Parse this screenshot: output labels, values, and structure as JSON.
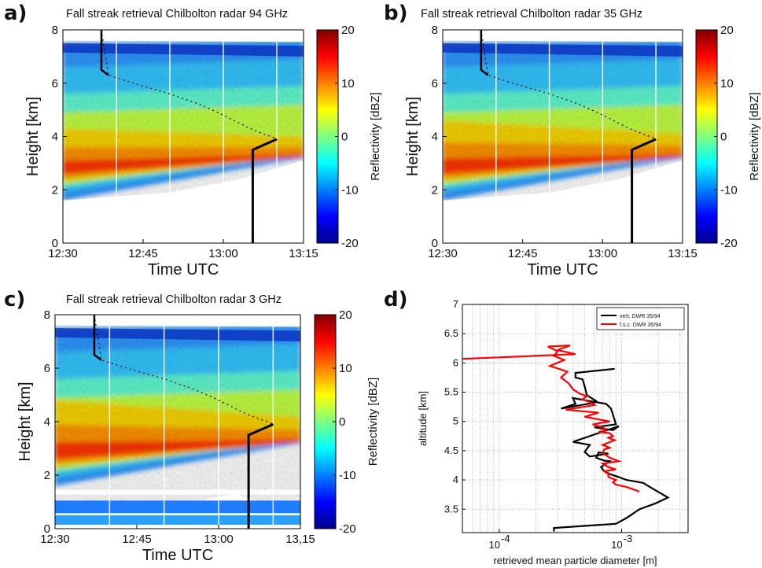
{
  "panels": [
    {
      "id": "a",
      "label": "a)",
      "title": "Fall streak retrieval Chilbolton radar 94 GHz"
    },
    {
      "id": "b",
      "label": "b)",
      "title": "Fall streak retrieval Chilbolton radar 35 GHz"
    },
    {
      "id": "c",
      "label": "c)",
      "title": "Fall streak retrieval Chilbolton radar 3 GHz"
    },
    {
      "id": "d",
      "label": "d)",
      "title": ""
    }
  ],
  "chart_data": [
    {
      "type": "heatmap",
      "title": "Fall streak retrieval Chilbolton radar 94 GHz",
      "xlabel": "Time UTC",
      "ylabel": "Height [km]",
      "x_ticks": [
        "12:30",
        "12:45",
        "13:00",
        "13:15"
      ],
      "y_ticks": [
        "0",
        "2",
        "4",
        "6",
        "8"
      ],
      "ylim": [
        0,
        8
      ],
      "colorbar": {
        "label": "Reflectivity [dBZ]",
        "ticks": [
          "20",
          "10",
          "0",
          "-10",
          "-20"
        ],
        "range": [
          -20,
          20
        ]
      },
      "colors": {
        "fall_streak": "#000000",
        "gridlines": "#ffffff"
      }
    },
    {
      "type": "heatmap",
      "title": "Fall streak retrieval Chilbolton radar 35 GHz",
      "xlabel": "Time UTC",
      "ylabel": "Height [km]",
      "x_ticks": [
        "12:30",
        "12:45",
        "13:00",
        "13:15"
      ],
      "y_ticks": [
        "0",
        "2",
        "4",
        "6",
        "8"
      ],
      "ylim": [
        0,
        8
      ],
      "colorbar": {
        "label": "Reflectivity [dBZ]",
        "ticks": [
          "20",
          "10",
          "0",
          "-10",
          "-20"
        ],
        "range": [
          -20,
          20
        ]
      }
    },
    {
      "type": "heatmap",
      "title": "Fall streak retrieval Chilbolton radar 3 GHz",
      "xlabel": "Time UTC",
      "ylabel": "Height [km]",
      "x_ticks": [
        "12:30",
        "12:45",
        "13:00",
        "13,15"
      ],
      "y_ticks": [
        "0",
        "2",
        "4",
        "6",
        "8"
      ],
      "ylim": [
        0,
        8
      ],
      "colorbar": {
        "label": "Reflectivity [dBZ]",
        "ticks": [
          "20",
          "10",
          "0",
          "-10",
          "-20"
        ],
        "range": [
          -20,
          20
        ]
      }
    },
    {
      "type": "line",
      "xlabel": "retrieved mean particle diameter [m]",
      "ylabel": "altitude [km]",
      "x_scale": "log",
      "xlim": [
        5e-05,
        0.0035
      ],
      "ylim": [
        3.1,
        7
      ],
      "x_ticks": [
        {
          "value": 0.0001,
          "base": "10",
          "exp": "-4"
        },
        {
          "value": 0.001,
          "base": "10",
          "exp": "-3"
        }
      ],
      "y_ticks": [
        "3.5",
        "4",
        "4.5",
        "5",
        "5.5",
        "6",
        "6.5",
        "7"
      ],
      "grid": true,
      "legend_position": "top-right",
      "series": [
        {
          "name": "vert. DWR 35/94",
          "color": "#000000",
          "x": [
            0.00088,
            0.00042,
            0.00042,
            0.00048,
            0.0005,
            0.00052,
            0.00062,
            0.0006,
            0.00032,
            0.00042,
            0.0004,
            0.00075,
            0.00082,
            0.00085,
            0.0009,
            0.0006,
            0.00085,
            0.00095,
            0.0004,
            0.00055,
            0.0005,
            0.00055,
            0.00078,
            0.00065,
            0.00062,
            0.00072,
            0.0008,
            0.00068,
            0.00072,
            0.0008,
            0.00095,
            0.0011,
            0.0015,
            0.0018,
            0.0024,
            0.0019,
            0.0014,
            0.0011,
            0.0009,
            0.00028,
            0.00028
          ],
          "y": [
            5.9,
            5.83,
            5.75,
            5.72,
            5.6,
            5.45,
            5.35,
            5.32,
            5.22,
            5.3,
            5.4,
            5.3,
            5.22,
            5.12,
            4.95,
            4.9,
            4.85,
            4.92,
            4.65,
            4.6,
            4.48,
            4.4,
            4.45,
            4.47,
            4.38,
            4.33,
            4.32,
            4.22,
            4.15,
            4.1,
            4.05,
            4.0,
            3.95,
            3.85,
            3.7,
            3.6,
            3.5,
            3.35,
            3.25,
            3.18,
            3.12
          ]
        },
        {
          "name": "f.s.c. DWR 35/94",
          "color": "#ff0000",
          "x": [
            3e-05,
            0.00042,
            0.0003,
            0.00038,
            0.00025,
            0.0003,
            0.00028,
            0.00034,
            0.00026,
            0.00036,
            0.00032,
            0.00037,
            0.0004,
            0.00045,
            0.00052,
            0.00048,
            0.00055,
            0.0006,
            0.00035,
            0.00065,
            0.0005,
            0.0008,
            0.00058,
            0.0007,
            0.00075,
            0.00065,
            0.0008,
            0.00085,
            0.00078,
            0.00088,
            0.0007,
            0.0008,
            0.00072,
            0.0007,
            0.00075,
            0.0008,
            0.00095,
            0.0007,
            0.00078,
            0.0009,
            0.00072,
            0.00078,
            0.00078,
            0.0009,
            0.00085,
            0.0009,
            0.0011,
            0.0012,
            0.0014
          ],
          "y": [
            6.05,
            6.15,
            6.22,
            6.3,
            6.28,
            6.2,
            6.12,
            6.05,
            5.95,
            5.85,
            5.75,
            5.65,
            5.55,
            5.48,
            5.43,
            5.38,
            5.33,
            5.28,
            5.2,
            5.15,
            5.08,
            5.0,
            4.95,
            4.9,
            4.85,
            4.82,
            4.8,
            4.75,
            4.72,
            4.68,
            4.6,
            4.55,
            4.52,
            4.45,
            4.42,
            4.38,
            4.32,
            4.28,
            4.22,
            4.18,
            4.15,
            4.1,
            4.05,
            4.0,
            3.96,
            3.92,
            3.88,
            3.85,
            3.8
          ]
        }
      ]
    }
  ]
}
